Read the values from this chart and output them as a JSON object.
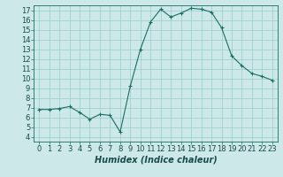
{
  "x_values": [
    0,
    1,
    2,
    3,
    4,
    5,
    6,
    7,
    8,
    9,
    10,
    11,
    12,
    13,
    14,
    15,
    16,
    17,
    18,
    19,
    20,
    21,
    22,
    23
  ],
  "y_values": [
    6.8,
    6.8,
    6.9,
    7.1,
    6.5,
    5.8,
    6.3,
    6.2,
    4.5,
    9.2,
    13.0,
    15.8,
    17.1,
    16.3,
    16.7,
    17.2,
    17.1,
    16.8,
    15.2,
    12.3,
    11.3,
    10.5,
    10.2,
    9.8
  ],
  "line_color": "#1a6e63",
  "marker_color": "#1a6e63",
  "bg_color": "#cce8e8",
  "grid_color": "#99cccc",
  "xlabel": "Humidex (Indice chaleur)",
  "xlim": [
    -0.5,
    23.5
  ],
  "ylim": [
    3.5,
    17.5
  ],
  "yticks": [
    4,
    5,
    6,
    7,
    8,
    9,
    10,
    11,
    12,
    13,
    14,
    15,
    16,
    17
  ],
  "xticks": [
    0,
    1,
    2,
    3,
    4,
    5,
    6,
    7,
    8,
    9,
    10,
    11,
    12,
    13,
    14,
    15,
    16,
    17,
    18,
    19,
    20,
    21,
    22,
    23
  ],
  "tick_fontsize": 6.0,
  "xlabel_fontsize": 7.0
}
